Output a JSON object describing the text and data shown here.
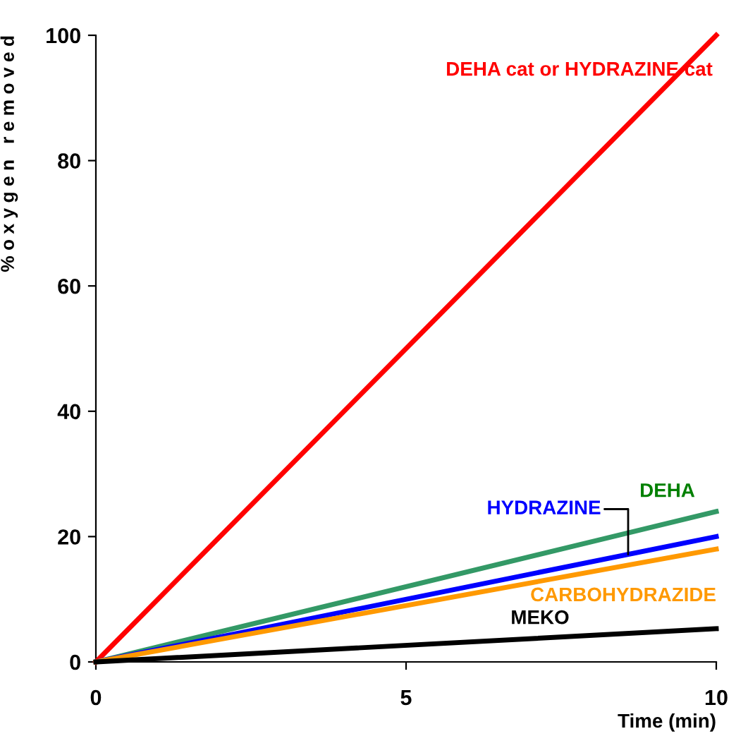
{
  "chart_data": {
    "type": "line",
    "xlabel": "Time (min)",
    "ylabel": "% o x y g e n   r e m o v e d",
    "xlim": [
      0,
      10
    ],
    "ylim": [
      0,
      100
    ],
    "xticks": [
      0,
      5,
      10
    ],
    "yticks": [
      0,
      20,
      40,
      60,
      80,
      100
    ],
    "grid": false,
    "legend": false,
    "marker": "none",
    "line_style": "solid",
    "x": [
      0,
      10
    ],
    "series": [
      {
        "name": "DEHA cat or HYDRAZINE cat",
        "color": "#ff0000",
        "values": [
          0,
          100
        ]
      },
      {
        "name": "DEHA",
        "color": "#339966",
        "values": [
          0,
          24
        ]
      },
      {
        "name": "HYDRAZINE",
        "color": "#0000ff",
        "values": [
          0,
          20
        ]
      },
      {
        "name": "CARBOHYDRAZIDE",
        "color": "#ff9900",
        "values": [
          0,
          18
        ]
      },
      {
        "name": "MEKO",
        "color": "#000000",
        "values": [
          0,
          5.3
        ]
      }
    ]
  }
}
